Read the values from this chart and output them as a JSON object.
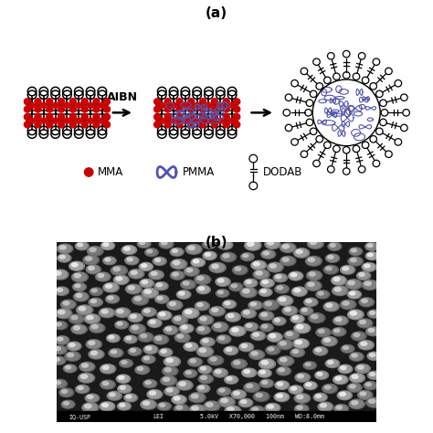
{
  "title_a": "(a)",
  "title_b": "(b)",
  "aibn_label": "AIBN",
  "dodab_color": "#000000",
  "mma_color": "#CC0000",
  "pmma_color": "#5555AA",
  "bg_color": "#FFFFFF",
  "sem_text_left": "IQ-USP",
  "sem_text_mid": "LEI",
  "sem_text_right": "5.0kV   X70,000   100nm   WD:8.0mm"
}
